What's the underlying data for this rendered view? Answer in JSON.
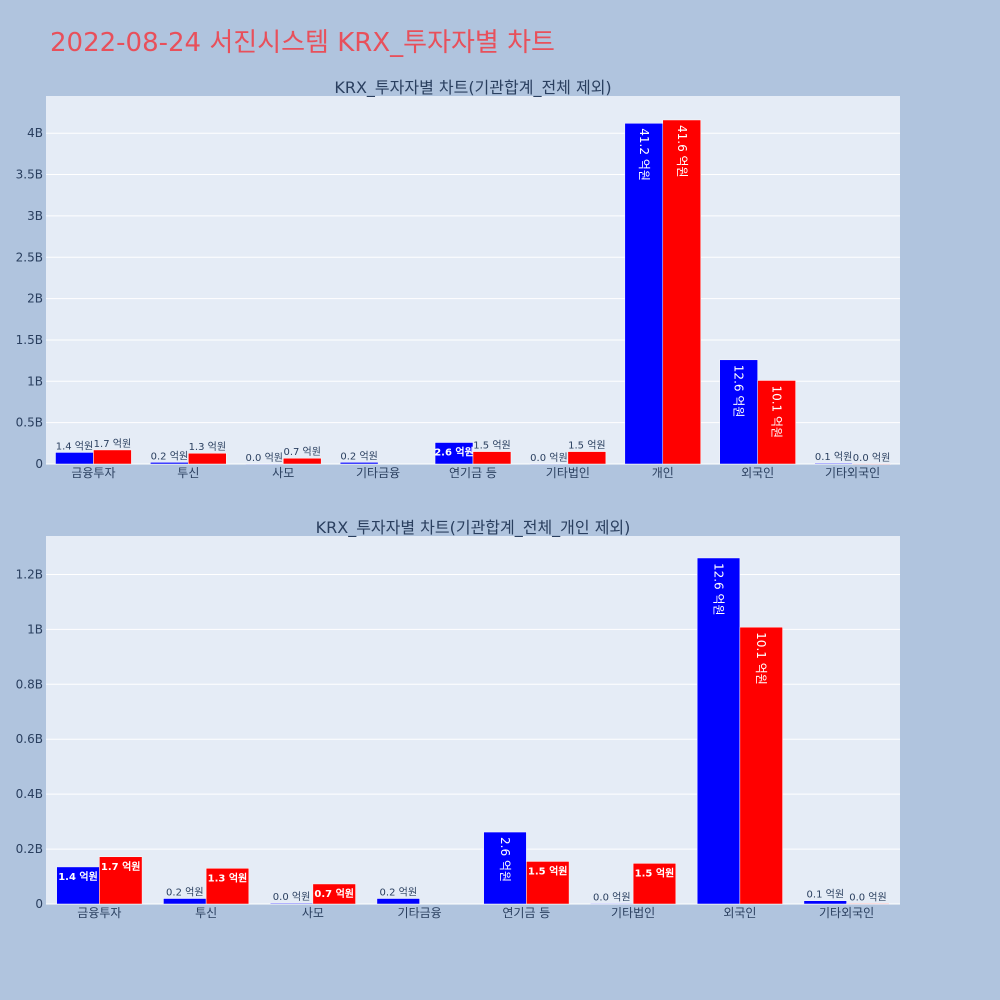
{
  "page": {
    "title": "2022-08-24 서진시스템 KRX_투자자별 차트"
  },
  "colors": {
    "buy": "#0000ff",
    "sell": "#ff0000",
    "title": "#e8505b",
    "background": "#b0c4de",
    "plot_bg": "#e5ecf6"
  },
  "chart_data": [
    {
      "type": "bar",
      "title": "KRX_투자자별 차트(기관합계_전체 제외)",
      "categories": [
        "금융투자",
        "투신",
        "사모",
        "기타금융",
        "연기금 등",
        "기타법인",
        "개인",
        "외국인",
        "기타외국인"
      ],
      "series": [
        {
          "color": "#0000ff",
          "values": [
            140000000,
            20000000,
            3000000,
            20000000,
            260000000,
            3000000,
            4120000000,
            1260000000,
            10000000
          ],
          "labels": [
            "1.4 억원",
            "0.2 억원",
            "0.0 억원",
            "0.2 억원",
            "2.6 억원",
            "0.0 억원",
            "41.2 억원",
            "12.6 억원",
            "0.1 억원"
          ]
        },
        {
          "color": "#ff0000",
          "values": [
            170000000,
            130000000,
            70000000,
            0,
            150000000,
            150000000,
            4160000000,
            1010000000,
            2000000
          ],
          "labels": [
            "1.7 억원",
            "1.3 억원",
            "0.7 억원",
            "",
            "1.5 억원",
            "1.5 억원",
            "41.6 억원",
            "10.1 억원",
            "0.0 억원"
          ]
        }
      ],
      "ylim": [
        0,
        4450000000
      ],
      "yticks": [
        0,
        500000000,
        1000000000,
        1500000000,
        2000000000,
        2500000000,
        3000000000,
        3500000000,
        4000000000
      ],
      "ytick_labels": [
        "0",
        "0.5B",
        "1B",
        "1.5B",
        "2B",
        "2.5B",
        "3B",
        "3.5B",
        "4B"
      ],
      "grid": true
    },
    {
      "type": "bar",
      "title": "KRX_투자자별 차트(기관합계_전체_개인 제외)",
      "categories": [
        "금융투자",
        "투신",
        "사모",
        "기타금융",
        "연기금 등",
        "기타법인",
        "외국인",
        "기타외국인"
      ],
      "series": [
        {
          "color": "#0000ff",
          "values": [
            135000000,
            20000000,
            3000000,
            20000000,
            262000000,
            2000000,
            1260000000,
            12000000
          ],
          "labels": [
            "1.4 억원",
            "0.2 억원",
            "0.0 억원",
            "0.2 억원",
            "2.6 억원",
            "0.0 억원",
            "12.6 억원",
            "0.1 억원"
          ]
        },
        {
          "color": "#ff0000",
          "values": [
            172000000,
            130000000,
            73000000,
            0,
            155000000,
            148000000,
            1008000000,
            2000000
          ],
          "labels": [
            "1.7 억원",
            "1.3 억원",
            "0.7 억원",
            "",
            "1.5 억원",
            "1.5 억원",
            "10.1 억원",
            "0.0 억원"
          ]
        }
      ],
      "ylim": [
        0,
        1340000000
      ],
      "yticks": [
        0,
        200000000,
        400000000,
        600000000,
        800000000,
        1000000000,
        1200000000
      ],
      "ytick_labels": [
        "0",
        "0.2B",
        "0.4B",
        "0.6B",
        "0.8B",
        "1B",
        "1.2B"
      ],
      "grid": true
    }
  ]
}
